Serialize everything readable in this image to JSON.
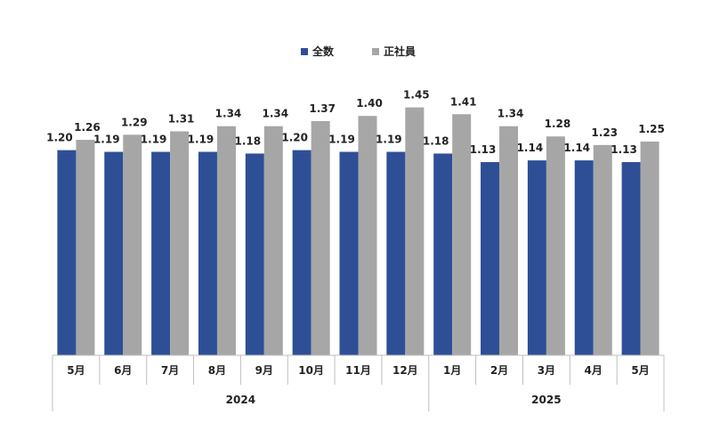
{
  "chart_data": {
    "type": "bar",
    "categories": [
      "5月",
      "6月",
      "7月",
      "8月",
      "9月",
      "10月",
      "11月",
      "12月",
      "1月",
      "2月",
      "3月",
      "4月",
      "5月"
    ],
    "groups": [
      {
        "label": "2024",
        "count": 8
      },
      {
        "label": "2025",
        "count": 5
      }
    ],
    "series": [
      {
        "name": "全数",
        "color": "#2e4f96",
        "values": [
          1.2,
          1.19,
          1.19,
          1.19,
          1.18,
          1.2,
          1.19,
          1.19,
          1.18,
          1.13,
          1.14,
          1.14,
          1.13
        ]
      },
      {
        "name": "正社員",
        "color": "#a6a6a6",
        "values": [
          1.26,
          1.29,
          1.31,
          1.34,
          1.34,
          1.37,
          1.4,
          1.45,
          1.41,
          1.34,
          1.28,
          1.23,
          1.25
        ]
      }
    ],
    "ylim": [
      0,
      1.5
    ],
    "legend_position": "top-center",
    "grid": false
  }
}
